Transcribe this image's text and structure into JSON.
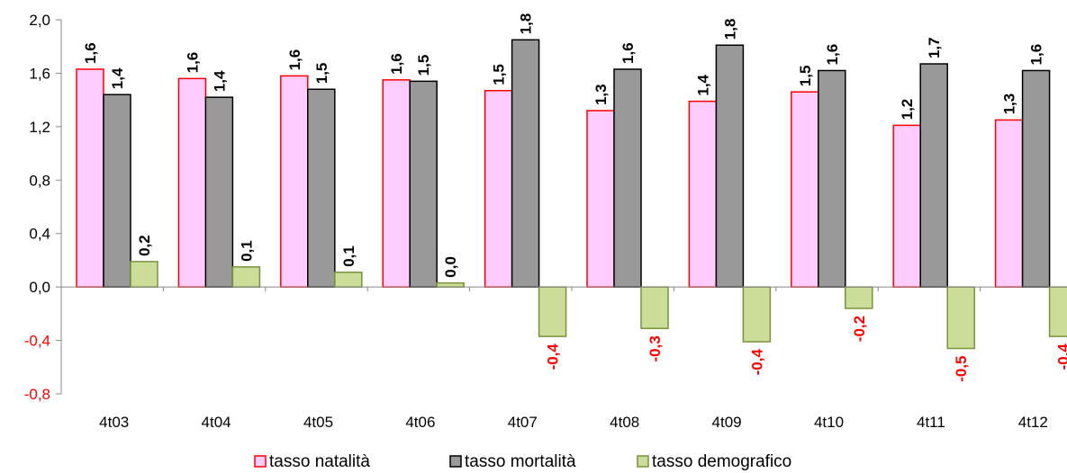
{
  "chart_data": {
    "type": "bar",
    "categories": [
      "4t03",
      "4t04",
      "4t05",
      "4t06",
      "4t07",
      "4t08",
      "4t09",
      "4t10",
      "4t11",
      "4t12"
    ],
    "series": [
      {
        "name": "tasso natalità",
        "values": [
          1.63,
          1.56,
          1.58,
          1.55,
          1.47,
          1.32,
          1.39,
          1.46,
          1.21,
          1.25
        ],
        "labels": [
          "1,6",
          "1,6",
          "1,6",
          "1,6",
          "1,5",
          "1,3",
          "1,4",
          "1,5",
          "1,2",
          "1,3"
        ],
        "fill": "#ffccff",
        "stroke": "#ff0000"
      },
      {
        "name": "tasso mortalità",
        "values": [
          1.44,
          1.42,
          1.48,
          1.54,
          1.85,
          1.63,
          1.81,
          1.62,
          1.67,
          1.62
        ],
        "labels": [
          "1,4",
          "1,4",
          "1,5",
          "1,5",
          "1,8",
          "1,6",
          "1,8",
          "1,6",
          "1,7",
          "1,6"
        ],
        "fill": "#999999",
        "stroke": "#000000"
      },
      {
        "name": "tasso demografico",
        "values": [
          0.19,
          0.15,
          0.11,
          0.03,
          -0.37,
          -0.31,
          -0.41,
          -0.16,
          -0.46,
          -0.37
        ],
        "labels": [
          "0,2",
          "0,1",
          "0,1",
          "0,0",
          "-0,4",
          "-0,3",
          "-0,4",
          "-0,2",
          "-0,5",
          "-0,4"
        ],
        "fill": "#ccdd99",
        "stroke": "#77933c"
      }
    ],
    "y_ticks": [
      "2,0",
      "1,6",
      "1,2",
      "0,8",
      "0,4",
      "0,0",
      "-0,4",
      "-0,8"
    ],
    "ylim": [
      -0.8,
      2.0
    ],
    "ystep": 0.4,
    "grid": false,
    "legend_position": "bottom",
    "colors": {
      "positive_label": "#000000",
      "negative_label": "#ff0000",
      "axis": "#888888"
    }
  }
}
